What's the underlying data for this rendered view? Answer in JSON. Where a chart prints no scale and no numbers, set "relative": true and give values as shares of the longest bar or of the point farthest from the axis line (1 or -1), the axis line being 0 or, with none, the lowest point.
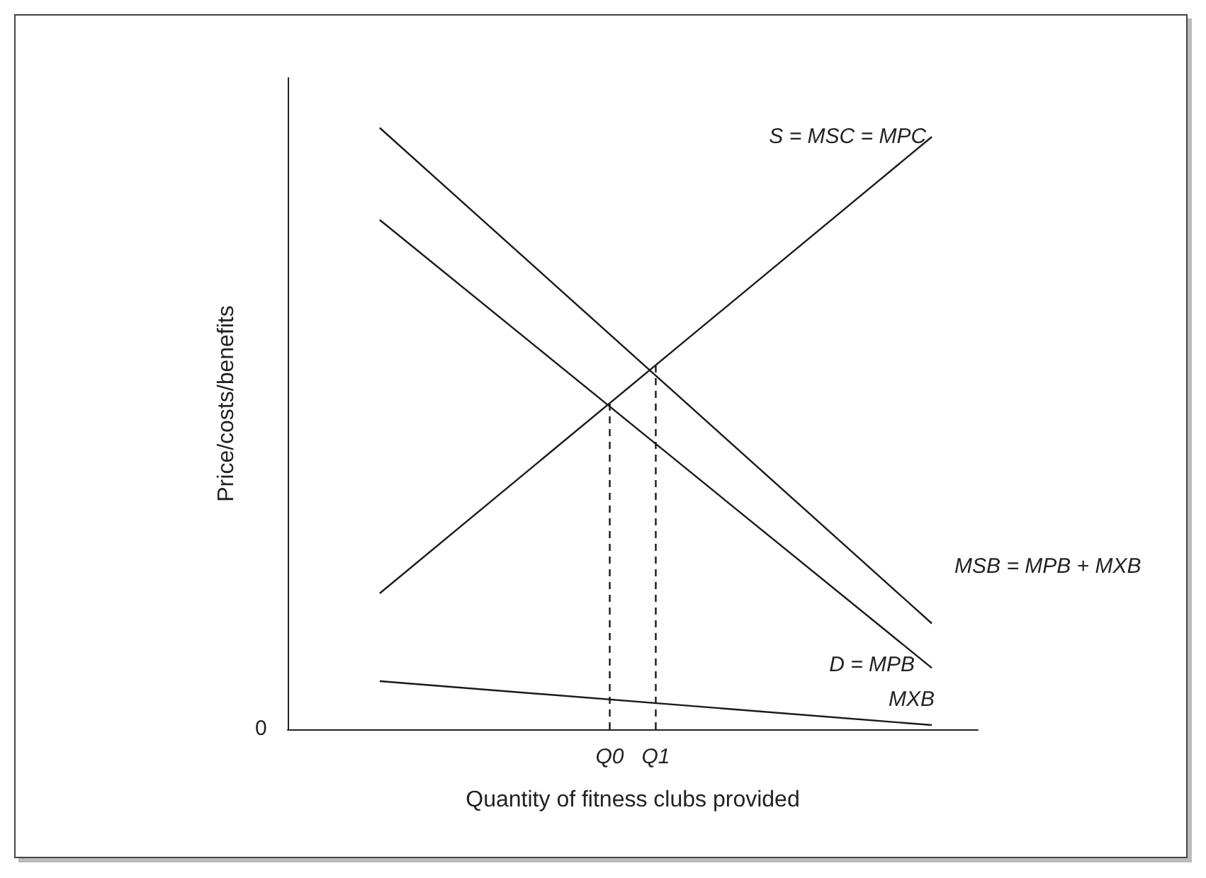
{
  "chart_data": {
    "type": "line",
    "relative": true,
    "xlabel": "Quantity of fitness clubs provided",
    "ylabel": "Price/costs/benefits",
    "categories": [
      null,
      null,
      null,
      null,
      null,
      null,
      null,
      null,
      null,
      null,
      null,
      null,
      null,
      null,
      "Q0",
      null,
      "Q1",
      null,
      null,
      null,
      null,
      null,
      null,
      null,
      null,
      null,
      null,
      null,
      null,
      null,
      null
    ],
    "grid": false,
    "legend": false,
    "marker": "none",
    "annotations": [
      "0"
    ],
    "series": [
      {
        "name": "S = MSC = MPC",
        "color": "#1a1a1a",
        "values": [
          null,
          null,
          null,
          null,
          0.226,
          null,
          null,
          null,
          null,
          null,
          null,
          null,
          null,
          null,
          null,
          null,
          null,
          null,
          null,
          null,
          null,
          null,
          null,
          null,
          null,
          null,
          null,
          null,
          0.985,
          null,
          null
        ]
      },
      {
        "name": "MSB = MPB + MXB",
        "color": "#1a1a1a",
        "values": [
          null,
          null,
          null,
          null,
          1.0,
          null,
          null,
          null,
          null,
          null,
          null,
          null,
          null,
          null,
          null,
          null,
          null,
          null,
          null,
          null,
          null,
          null,
          null,
          null,
          null,
          null,
          null,
          null,
          0.176,
          null,
          null
        ]
      },
      {
        "name": "D = MPB",
        "color": "#1a1a1a",
        "values": [
          null,
          null,
          null,
          null,
          0.847,
          null,
          null,
          null,
          null,
          null,
          null,
          null,
          null,
          null,
          null,
          null,
          null,
          null,
          null,
          null,
          null,
          null,
          null,
          null,
          null,
          null,
          null,
          null,
          0.102,
          null,
          null
        ]
      },
      {
        "name": "MXB",
        "color": "#1a1a1a",
        "values": [
          null,
          null,
          null,
          null,
          0.08,
          null,
          null,
          null,
          null,
          null,
          null,
          null,
          null,
          null,
          null,
          null,
          null,
          null,
          null,
          null,
          null,
          null,
          null,
          null,
          null,
          null,
          null,
          null,
          0.007,
          null,
          null
        ]
      },
      {
        "color": "#1a1a1a",
        "line_style": "dashed",
        "x": [
          "Q0",
          "Q0"
        ],
        "values": [
          0,
          0.543
        ]
      },
      {
        "color": "#1a1a1a",
        "line_style": "dashed",
        "x": [
          "Q1",
          "Q1"
        ],
        "values": [
          0,
          0.606
        ]
      }
    ]
  }
}
